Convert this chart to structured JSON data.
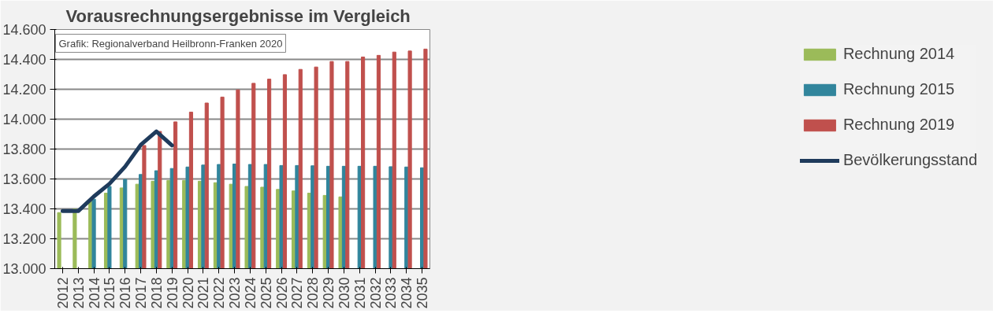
{
  "chart_data": {
    "type": "bar",
    "title": "Vorausrechnungsergebnisse im Vergleich",
    "categories": [
      "2012",
      "2013",
      "2014",
      "2015",
      "2016",
      "2017",
      "2018",
      "2019",
      "2020",
      "2021",
      "2022",
      "2023",
      "2024",
      "2025",
      "2026",
      "2027",
      "2028",
      "2029",
      "2030",
      "2031",
      "2032",
      "2033",
      "2034",
      "2035"
    ],
    "series": [
      {
        "name": "Rechnung 2014",
        "color": "#9bbb59",
        "values": [
          13375,
          13400,
          13460,
          13505,
          13540,
          13565,
          13585,
          13590,
          13590,
          13585,
          13575,
          13565,
          13550,
          13545,
          13530,
          13520,
          13505,
          13490,
          13480,
          null,
          null,
          null,
          null,
          null
        ]
      },
      {
        "name": "Rechnung 2015",
        "color": "#31859c",
        "values": [
          null,
          null,
          13465,
          13550,
          13597,
          13630,
          13655,
          13670,
          13680,
          13693,
          13697,
          13700,
          13697,
          13697,
          13690,
          13690,
          13688,
          13685,
          13685,
          13685,
          13685,
          13682,
          13680,
          13675
        ]
      },
      {
        "name": "Rechnung 2019",
        "color": "#c0504d",
        "values": [
          null,
          null,
          null,
          null,
          null,
          13824,
          13918,
          13982,
          14047,
          14108,
          14148,
          14196,
          14240,
          14268,
          14298,
          14333,
          14349,
          14386,
          14386,
          14416,
          14427,
          14449,
          14456,
          14469
        ]
      },
      {
        "name": "Bevölkerungsstand",
        "type": "line",
        "color": "#1f3b5c",
        "values": [
          13385,
          13385,
          13483,
          13568,
          13682,
          13828,
          13918,
          13824,
          null,
          null,
          null,
          null,
          null,
          null,
          null,
          null,
          null,
          null,
          null,
          null,
          null,
          null,
          null,
          null
        ]
      }
    ],
    "ylim": [
      13000,
      14600
    ],
    "yticks": [
      {
        "value": 13000,
        "label": "13.000"
      },
      {
        "value": 13200,
        "label": "13.200"
      },
      {
        "value": 13400,
        "label": "13.400"
      },
      {
        "value": 13600,
        "label": "13.600"
      },
      {
        "value": 13800,
        "label": "13.800"
      },
      {
        "value": 14000,
        "label": "14.000"
      },
      {
        "value": 14200,
        "label": "14.200"
      },
      {
        "value": 14400,
        "label": "14.400"
      },
      {
        "value": 14600,
        "label": "14.600"
      }
    ],
    "grid": "y",
    "legend": "right",
    "annotations": [
      "Grafik: Regionalverband Heilbronn-Franken 2020"
    ]
  }
}
